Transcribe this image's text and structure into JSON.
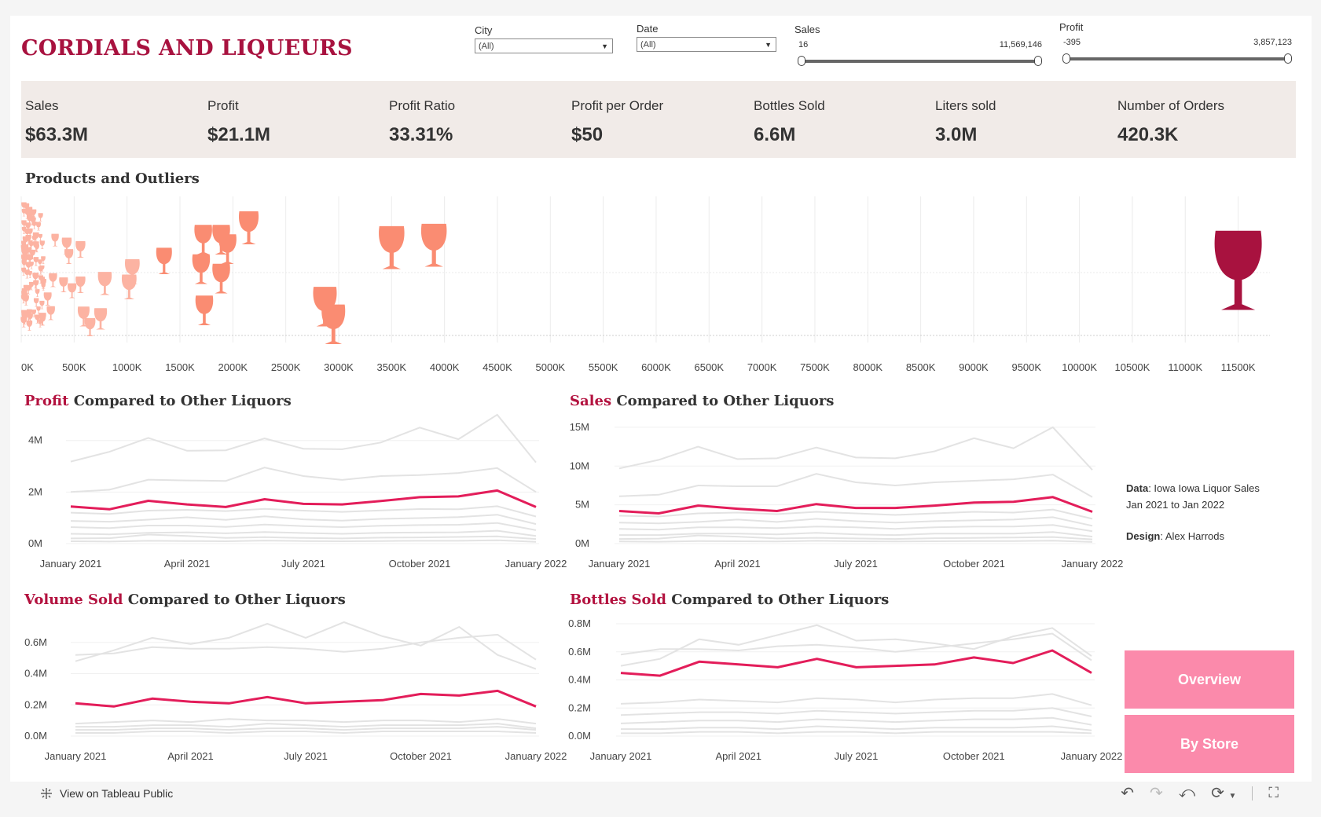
{
  "title": "CORDIALS AND LIQUEURS",
  "filters": {
    "city": {
      "label": "City",
      "value": "(All)"
    },
    "date": {
      "label": "Date",
      "value": "(All)"
    },
    "sales": {
      "label": "Sales",
      "min": "16",
      "max": "11,569,146"
    },
    "profit": {
      "label": "Profit",
      "min": "-395",
      "max": "3,857,123"
    }
  },
  "kpis": [
    {
      "label": "Sales",
      "value": "$63.3M"
    },
    {
      "label": "Profit",
      "value": "$21.1M"
    },
    {
      "label": "Profit Ratio",
      "value": "33.31%"
    },
    {
      "label": "Profit per Order",
      "value": "$50"
    },
    {
      "label": "Bottles Sold",
      "value": "6.6M"
    },
    {
      "label": "Liters sold",
      "value": "3.0M"
    },
    {
      "label": "Number of Orders",
      "value": "420.3K"
    }
  ],
  "colors": {
    "brand": "#a8123f",
    "highlight_line": "#e31d5a",
    "other_lines": "#e3e3e3",
    "glass_light": "#fa8c72",
    "glass_small": "#fcb3a2",
    "glass_outlier": "#a8123f",
    "kpi_band": "#f1ebe8",
    "button": "#fb8aab"
  },
  "scatter": {
    "title": "Products and Outliers",
    "icon": "wine-glass-icon",
    "xticks": [
      "0K",
      "500K",
      "1000K",
      "1500K",
      "2000K",
      "2500K",
      "3000K",
      "3500K",
      "4000K",
      "4500K",
      "5000K",
      "5500K",
      "6000K",
      "6500K",
      "7000K",
      "7500K",
      "8000K",
      "8500K",
      "9000K",
      "9500K",
      "10000K",
      "10500K",
      "11000K",
      "11500K"
    ],
    "xlim": [
      0,
      11800000
    ]
  },
  "sections": {
    "profit": {
      "hl": "Profit",
      "rest": " Compared to Other Liquors"
    },
    "sales": {
      "hl": "Sales",
      "rest": " Compared to Other Liquors"
    },
    "volume": {
      "hl": "Volume Sold",
      "rest": " Compared to Other Liquors"
    },
    "bottles": {
      "hl": "Bottles Sold",
      "rest": " Compared to Other Liquors"
    }
  },
  "chart_data": [
    {
      "type": "scatter",
      "title": "Products and Outliers",
      "xlabel": "",
      "ylabel": "",
      "xlim": [
        0,
        11800000
      ],
      "x_ticks": [
        "0K",
        "500K",
        "1000K",
        "1500K",
        "2000K",
        "2500K",
        "3000K",
        "3500K",
        "4000K",
        "4500K",
        "5000K",
        "5500K",
        "6000K",
        "6500K",
        "7000K",
        "7500K",
        "8000K",
        "8500K",
        "9000K",
        "9500K",
        "10000K",
        "10500K",
        "11000K",
        "11500K"
      ],
      "grid": true,
      "points": [
        {
          "x": 11500000,
          "row": 0.55,
          "size": 2.4,
          "outlier": true
        },
        {
          "x": 3500000,
          "row": 0.35,
          "size": 1.3
        },
        {
          "x": 3900000,
          "row": 0.33,
          "size": 1.3
        },
        {
          "x": 2150000,
          "row": 0.18,
          "size": 1.0
        },
        {
          "x": 1720000,
          "row": 0.28,
          "size": 0.9
        },
        {
          "x": 1890000,
          "row": 0.28,
          "size": 0.9
        },
        {
          "x": 1950000,
          "row": 0.36,
          "size": 0.9
        },
        {
          "x": 1350000,
          "row": 0.46,
          "size": 0.8
        },
        {
          "x": 1700000,
          "row": 0.53,
          "size": 0.9
        },
        {
          "x": 1890000,
          "row": 0.61,
          "size": 0.9
        },
        {
          "x": 1050000,
          "row": 0.55,
          "size": 0.75
        },
        {
          "x": 1020000,
          "row": 0.68,
          "size": 0.75
        },
        {
          "x": 790000,
          "row": 0.65,
          "size": 0.7
        },
        {
          "x": 1730000,
          "row": 0.88,
          "size": 0.9
        },
        {
          "x": 2870000,
          "row": 0.85,
          "size": 1.2
        },
        {
          "x": 2950000,
          "row": 1.0,
          "size": 1.2
        },
        {
          "x": 750000,
          "row": 0.95,
          "size": 0.65
        },
        {
          "x": 590000,
          "row": 0.93,
          "size": 0.6
        },
        {
          "x": 650000,
          "row": 1.02,
          "size": 0.55
        },
        {
          "x": 560000,
          "row": 0.36,
          "size": 0.5
        },
        {
          "x": 430000,
          "row": 0.33,
          "size": 0.5
        },
        {
          "x": 450000,
          "row": 0.42,
          "size": 0.45
        },
        {
          "x": 560000,
          "row": 0.66,
          "size": 0.5
        },
        {
          "x": 480000,
          "row": 0.71,
          "size": 0.45
        },
        {
          "x": 400000,
          "row": 0.66,
          "size": 0.45
        },
        {
          "x": 300000,
          "row": 0.62,
          "size": 0.42
        },
        {
          "x": 250000,
          "row": 0.78,
          "size": 0.4
        },
        {
          "x": 280000,
          "row": 0.9,
          "size": 0.42
        },
        {
          "x": 200000,
          "row": 0.95,
          "size": 0.38
        },
        {
          "x": 320000,
          "row": 0.28,
          "size": 0.38
        }
      ]
    },
    {
      "type": "line",
      "title": "Profit Compared to Other Liquors",
      "categories": [
        "Jan 2021",
        "Feb 2021",
        "Mar 2021",
        "Apr 2021",
        "May 2021",
        "Jun 2021",
        "Jul 2021",
        "Aug 2021",
        "Sep 2021",
        "Oct 2021",
        "Nov 2021",
        "Dec 2021",
        "Jan 2022"
      ],
      "x_ticks": [
        "January 2021",
        "April 2021",
        "July 2021",
        "October 2021",
        "January 2022"
      ],
      "x_tick_index": [
        0,
        3,
        6,
        9,
        12
      ],
      "ylim": [
        0,
        4600000
      ],
      "y_ticks": [
        {
          "v": 0,
          "t": "0M"
        },
        {
          "v": 2000000,
          "t": "2M"
        },
        {
          "v": 4000000,
          "t": "4M"
        }
      ],
      "highlight": {
        "values": [
          1440000,
          1330000,
          1660000,
          1520000,
          1420000,
          1720000,
          1540000,
          1520000,
          1650000,
          1800000,
          1830000,
          2060000,
          1420000
        ]
      },
      "others": [
        {
          "values": [
            3180000,
            3560000,
            4100000,
            3600000,
            3620000,
            4080000,
            3680000,
            3660000,
            3920000,
            4500000,
            4050000,
            5000000,
            3150000
          ]
        },
        {
          "values": [
            2000000,
            2090000,
            2480000,
            2450000,
            2430000,
            2950000,
            2620000,
            2470000,
            2620000,
            2660000,
            2740000,
            2930000,
            2000000
          ]
        },
        {
          "values": [
            1200000,
            1150000,
            1280000,
            1310000,
            1260000,
            1350000,
            1280000,
            1230000,
            1290000,
            1340000,
            1330000,
            1450000,
            1050000
          ]
        },
        {
          "values": [
            880000,
            850000,
            930000,
            1020000,
            920000,
            1060000,
            940000,
            890000,
            960000,
            990000,
            1030000,
            1120000,
            760000
          ]
        },
        {
          "values": [
            640000,
            600000,
            700000,
            700000,
            650000,
            740000,
            680000,
            640000,
            690000,
            720000,
            730000,
            800000,
            520000
          ]
        },
        {
          "values": [
            380000,
            360000,
            420000,
            440000,
            400000,
            450000,
            410000,
            380000,
            420000,
            430000,
            440000,
            500000,
            300000
          ]
        },
        {
          "values": [
            200000,
            210000,
            350000,
            300000,
            220000,
            250000,
            220000,
            200000,
            230000,
            240000,
            260000,
            280000,
            180000
          ]
        },
        {
          "values": [
            90000,
            80000,
            110000,
            100000,
            90000,
            120000,
            100000,
            90000,
            100000,
            110000,
            110000,
            130000,
            70000
          ]
        }
      ]
    },
    {
      "type": "line",
      "title": "Sales Compared to Other Liquors",
      "categories": [
        "Jan 2021",
        "Feb 2021",
        "Mar 2021",
        "Apr 2021",
        "May 2021",
        "Jun 2021",
        "Jul 2021",
        "Aug 2021",
        "Sep 2021",
        "Oct 2021",
        "Nov 2021",
        "Dec 2021",
        "Jan 2022"
      ],
      "x_ticks": [
        "January 2021",
        "April 2021",
        "July 2021",
        "October 2021",
        "January 2022"
      ],
      "x_tick_index": [
        0,
        3,
        6,
        9,
        12
      ],
      "ylim": [
        0,
        15500000
      ],
      "y_ticks": [
        {
          "v": 0,
          "t": "0M"
        },
        {
          "v": 5000000,
          "t": "5M"
        },
        {
          "v": 10000000,
          "t": "10M"
        },
        {
          "v": 15000000,
          "t": "15M"
        }
      ],
      "highlight": {
        "values": [
          4200000,
          3900000,
          4900000,
          4500000,
          4200000,
          5100000,
          4600000,
          4600000,
          4900000,
          5300000,
          5400000,
          6000000,
          4100000
        ]
      },
      "others": [
        {
          "values": [
            9700000,
            10800000,
            12500000,
            10900000,
            11000000,
            12400000,
            11100000,
            11000000,
            11900000,
            13600000,
            12300000,
            15000000,
            9500000
          ]
        },
        {
          "values": [
            6100000,
            6300000,
            7500000,
            7400000,
            7400000,
            9000000,
            7900000,
            7500000,
            7900000,
            8100000,
            8300000,
            8900000,
            6000000
          ]
        },
        {
          "values": [
            3600000,
            3500000,
            3900000,
            4000000,
            3800000,
            4100000,
            3900000,
            3700000,
            3900000,
            4100000,
            4000000,
            4400000,
            3200000
          ]
        },
        {
          "values": [
            2700000,
            2600000,
            2800000,
            3100000,
            2800000,
            3200000,
            2900000,
            2700000,
            2900000,
            3000000,
            3100000,
            3400000,
            2300000
          ]
        },
        {
          "values": [
            1900000,
            1800000,
            2100000,
            2100000,
            2000000,
            2200000,
            2100000,
            1900000,
            2100000,
            2200000,
            2200000,
            2400000,
            1600000
          ]
        },
        {
          "values": [
            1100000,
            1100000,
            1300000,
            1300000,
            1200000,
            1400000,
            1200000,
            1100000,
            1300000,
            1300000,
            1300000,
            1500000,
            900000
          ]
        },
        {
          "values": [
            600000,
            650000,
            1050000,
            900000,
            670000,
            750000,
            670000,
            600000,
            700000,
            730000,
            790000,
            850000,
            550000
          ]
        },
        {
          "values": [
            270000,
            240000,
            330000,
            300000,
            270000,
            360000,
            300000,
            270000,
            300000,
            330000,
            330000,
            390000,
            210000
          ]
        }
      ]
    },
    {
      "type": "line",
      "title": "Volume Sold Compared to Other Liquors",
      "categories": [
        "Jan 2021",
        "Feb 2021",
        "Mar 2021",
        "Apr 2021",
        "May 2021",
        "Jun 2021",
        "Jul 2021",
        "Aug 2021",
        "Sep 2021",
        "Oct 2021",
        "Nov 2021",
        "Dec 2021",
        "Jan 2022"
      ],
      "x_ticks": [
        "January 2021",
        "April 2021",
        "July 2021",
        "October 2021",
        "January 2022"
      ],
      "x_tick_index": [
        0,
        3,
        6,
        9,
        12
      ],
      "ylim": [
        0,
        0.72
      ],
      "y_ticks": [
        {
          "v": 0,
          "t": "0.0M"
        },
        {
          "v": 0.2,
          "t": "0.2M"
        },
        {
          "v": 0.4,
          "t": "0.4M"
        },
        {
          "v": 0.6,
          "t": "0.6M"
        }
      ],
      "highlight": {
        "values": [
          0.21,
          0.19,
          0.24,
          0.22,
          0.21,
          0.25,
          0.21,
          0.22,
          0.23,
          0.27,
          0.26,
          0.29,
          0.19
        ]
      },
      "others": [
        {
          "values": [
            0.48,
            0.55,
            0.63,
            0.59,
            0.63,
            0.72,
            0.63,
            0.73,
            0.64,
            0.58,
            0.7,
            0.52,
            0.43
          ]
        },
        {
          "values": [
            0.52,
            0.53,
            0.57,
            0.56,
            0.56,
            0.57,
            0.56,
            0.54,
            0.56,
            0.6,
            0.63,
            0.65,
            0.49
          ]
        },
        {
          "values": [
            0.08,
            0.09,
            0.1,
            0.09,
            0.11,
            0.1,
            0.1,
            0.09,
            0.1,
            0.1,
            0.09,
            0.11,
            0.08
          ]
        },
        {
          "values": [
            0.06,
            0.06,
            0.07,
            0.07,
            0.06,
            0.08,
            0.07,
            0.06,
            0.07,
            0.07,
            0.07,
            0.08,
            0.05
          ]
        },
        {
          "values": [
            0.04,
            0.04,
            0.05,
            0.05,
            0.04,
            0.05,
            0.05,
            0.04,
            0.05,
            0.05,
            0.05,
            0.06,
            0.04
          ]
        },
        {
          "values": [
            0.02,
            0.02,
            0.03,
            0.03,
            0.02,
            0.03,
            0.03,
            0.02,
            0.03,
            0.03,
            0.03,
            0.03,
            0.02
          ]
        }
      ]
    },
    {
      "type": "line",
      "title": "Bottles Sold Compared to Other Liquors",
      "categories": [
        "Jan 2021",
        "Feb 2021",
        "Mar 2021",
        "Apr 2021",
        "May 2021",
        "Jun 2021",
        "Jul 2021",
        "Aug 2021",
        "Sep 2021",
        "Oct 2021",
        "Nov 2021",
        "Dec 2021",
        "Jan 2022"
      ],
      "x_ticks": [
        "January 2021",
        "April 2021",
        "July 2021",
        "October 2021",
        "January 2022"
      ],
      "x_tick_index": [
        0,
        3,
        6,
        9,
        12
      ],
      "ylim": [
        0,
        0.8
      ],
      "y_ticks": [
        {
          "v": 0,
          "t": "0.0M"
        },
        {
          "v": 0.2,
          "t": "0.2M"
        },
        {
          "v": 0.4,
          "t": "0.4M"
        },
        {
          "v": 0.6,
          "t": "0.6M"
        },
        {
          "v": 0.8,
          "t": "0.8M"
        }
      ],
      "highlight": {
        "values": [
          0.45,
          0.43,
          0.53,
          0.51,
          0.49,
          0.55,
          0.49,
          0.5,
          0.51,
          0.56,
          0.52,
          0.61,
          0.45
        ]
      },
      "others": [
        {
          "values": [
            0.5,
            0.55,
            0.69,
            0.65,
            0.72,
            0.79,
            0.68,
            0.69,
            0.66,
            0.62,
            0.71,
            0.77,
            0.57
          ]
        },
        {
          "values": [
            0.58,
            0.62,
            0.62,
            0.61,
            0.64,
            0.65,
            0.63,
            0.6,
            0.63,
            0.66,
            0.69,
            0.73,
            0.54
          ]
        },
        {
          "values": [
            0.23,
            0.24,
            0.26,
            0.25,
            0.24,
            0.27,
            0.26,
            0.24,
            0.26,
            0.27,
            0.27,
            0.3,
            0.22
          ]
        },
        {
          "values": [
            0.15,
            0.16,
            0.17,
            0.17,
            0.16,
            0.18,
            0.17,
            0.16,
            0.17,
            0.18,
            0.18,
            0.2,
            0.14
          ]
        },
        {
          "values": [
            0.09,
            0.1,
            0.11,
            0.11,
            0.1,
            0.12,
            0.11,
            0.1,
            0.11,
            0.12,
            0.12,
            0.13,
            0.08
          ]
        },
        {
          "values": [
            0.05,
            0.05,
            0.06,
            0.06,
            0.05,
            0.07,
            0.06,
            0.05,
            0.06,
            0.06,
            0.06,
            0.07,
            0.04
          ]
        },
        {
          "values": [
            0.02,
            0.02,
            0.03,
            0.03,
            0.02,
            0.03,
            0.03,
            0.02,
            0.03,
            0.03,
            0.03,
            0.03,
            0.02
          ]
        }
      ]
    }
  ],
  "credits": {
    "data_label": "Data",
    "data_text": ": Iowa Iowa Liquor Sales",
    "data_text2": "Jan 2021 to Jan 2022",
    "design_label": "Design",
    "design_text": ": Alex Harrods"
  },
  "buttons": {
    "overview": "Overview",
    "by_store": "By Store"
  },
  "footer": {
    "view_link": "View on Tableau Public",
    "tableau_icon": "tableau-icon",
    "tools": [
      "undo-icon",
      "redo-icon",
      "revert-icon",
      "refresh-icon",
      "share-icon",
      "fullscreen-icon"
    ]
  }
}
